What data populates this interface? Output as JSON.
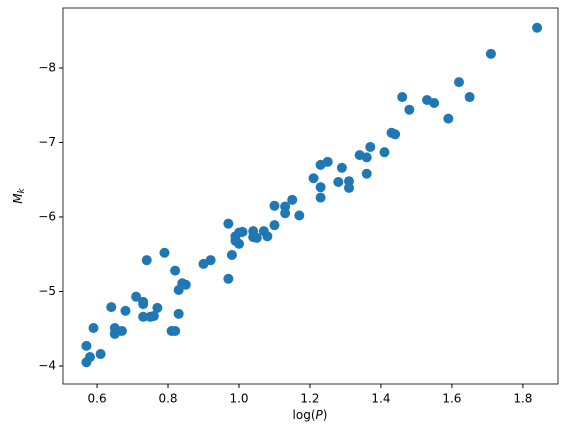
{
  "chart_data": {
    "type": "scatter",
    "xlabel": {
      "text": "log(",
      "italic": "P",
      "end": ")"
    },
    "ylabel": {
      "text": "M",
      "subscript": "k"
    },
    "color": "#1f77b4",
    "xlim": [
      0.504,
      1.899
    ],
    "ylim": [
      -3.758,
      -8.805
    ],
    "xticks": [
      0.6,
      0.8,
      {
        "value": 1.0,
        "label": "1.0"
      },
      1.2,
      1.4,
      1.6,
      1.8
    ],
    "yticks": [
      {
        "value": -8,
        "label": "−8"
      },
      {
        "value": -7,
        "label": "−7"
      },
      {
        "value": -6,
        "label": "−6"
      },
      {
        "value": -5,
        "label": "−5"
      },
      {
        "value": -4,
        "label": "−4"
      }
    ],
    "x": [
      1.84,
      1.71,
      1.62,
      1.65,
      1.46,
      1.53,
      1.55,
      1.48,
      1.59,
      1.43,
      1.44,
      1.37,
      1.41,
      1.34,
      1.36,
      1.25,
      1.23,
      1.29,
      1.21,
      1.28,
      1.31,
      1.36,
      1.23,
      1.31,
      1.23,
      1.15,
      1.1,
      1.13,
      1.13,
      1.17,
      0.97,
      1.1,
      1.0,
      0.99,
      1.01,
      1.04,
      1.07,
      1.04,
      1.05,
      1.08,
      0.99,
      1.0,
      0.98,
      0.79,
      0.92,
      0.9,
      0.74,
      0.82,
      0.97,
      0.84,
      0.85,
      0.83,
      0.71,
      0.73,
      0.64,
      0.73,
      0.77,
      0.68,
      0.73,
      0.75,
      0.76,
      0.83,
      0.59,
      0.65,
      0.81,
      0.82,
      0.67,
      0.65,
      0.57,
      0.61,
      0.58,
      0.57
    ],
    "values": [
      -8.54,
      -8.19,
      -7.81,
      -7.61,
      -7.61,
      -7.57,
      -7.53,
      -7.44,
      -7.32,
      -7.13,
      -7.11,
      -6.94,
      -6.87,
      -6.83,
      -6.8,
      -6.74,
      -6.7,
      -6.66,
      -6.52,
      -6.47,
      -6.48,
      -6.58,
      -6.4,
      -6.39,
      -6.26,
      -6.23,
      -6.15,
      -6.14,
      -6.05,
      -6.02,
      -5.91,
      -5.89,
      -5.79,
      -5.74,
      -5.8,
      -5.81,
      -5.81,
      -5.73,
      -5.72,
      -5.74,
      -5.68,
      -5.64,
      -5.49,
      -5.52,
      -5.42,
      -5.37,
      -5.42,
      -5.28,
      -5.17,
      -5.11,
      -5.09,
      -5.02,
      -4.93,
      -4.86,
      -4.79,
      -4.83,
      -4.78,
      -4.74,
      -4.66,
      -4.66,
      -4.67,
      -4.7,
      -4.51,
      -4.51,
      -4.47,
      -4.47,
      -4.47,
      -4.43,
      -4.27,
      -4.16,
      -4.12,
      -4.05
    ]
  }
}
